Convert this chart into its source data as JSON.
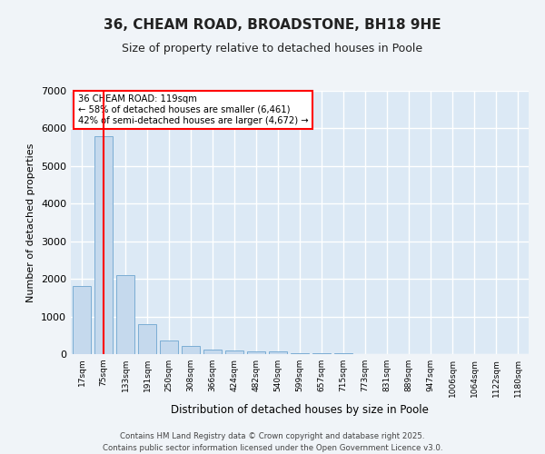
{
  "title": "36, CHEAM ROAD, BROADSTONE, BH18 9HE",
  "subtitle": "Size of property relative to detached houses in Poole",
  "xlabel": "Distribution of detached houses by size in Poole",
  "ylabel": "Number of detached properties",
  "categories": [
    "17sqm",
    "75sqm",
    "133sqm",
    "191sqm",
    "250sqm",
    "308sqm",
    "366sqm",
    "424sqm",
    "482sqm",
    "540sqm",
    "599sqm",
    "657sqm",
    "715sqm",
    "773sqm",
    "831sqm",
    "889sqm",
    "947sqm",
    "1006sqm",
    "1064sqm",
    "1122sqm",
    "1180sqm"
  ],
  "values": [
    1800,
    5800,
    2100,
    800,
    360,
    215,
    125,
    95,
    80,
    65,
    35,
    22,
    14,
    10,
    6,
    5,
    4,
    4,
    3,
    3,
    3
  ],
  "bar_color": "#c5d9ed",
  "bar_edge_color": "#7badd4",
  "red_line_x": 1.0,
  "annotation_title": "36 CHEAM ROAD: 119sqm",
  "annotation_line1": "← 58% of detached houses are smaller (6,461)",
  "annotation_line2": "42% of semi-detached houses are larger (4,672) →",
  "ylim": [
    0,
    7000
  ],
  "yticks": [
    0,
    1000,
    2000,
    3000,
    4000,
    5000,
    6000,
    7000
  ],
  "plot_bg_color": "#dce9f5",
  "fig_bg_color": "#f0f4f8",
  "grid_color": "#ffffff",
  "footer_line1": "Contains HM Land Registry data © Crown copyright and database right 2025.",
  "footer_line2": "Contains public sector information licensed under the Open Government Licence v3.0."
}
